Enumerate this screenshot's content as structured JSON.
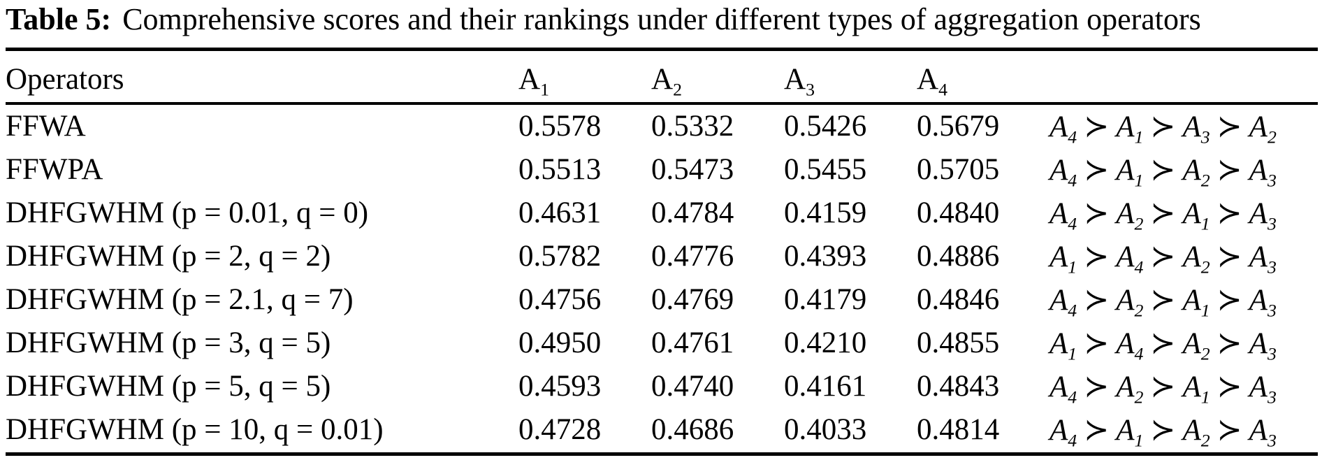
{
  "title": {
    "label": "Table 5:",
    "text": "Comprehensive scores and their rankings under different types of aggregation operators"
  },
  "table": {
    "operator_header": "Operators",
    "alternative_symbol": "A",
    "succeeds_symbol": "≻",
    "alternative_headers": [
      {
        "base": "A",
        "sub": "1"
      },
      {
        "base": "A",
        "sub": "2"
      },
      {
        "base": "A",
        "sub": "3"
      },
      {
        "base": "A",
        "sub": "4"
      }
    ],
    "rows": [
      {
        "operator": "FFWA",
        "scores": [
          "0.5578",
          "0.5332",
          "0.5426",
          "0.5679"
        ],
        "ranking_order": [
          "4",
          "1",
          "3",
          "2"
        ]
      },
      {
        "operator": "FFWPA",
        "scores": [
          "0.5513",
          "0.5473",
          "0.5455",
          "0.5705"
        ],
        "ranking_order": [
          "4",
          "1",
          "2",
          "3"
        ]
      },
      {
        "operator": "DHFGWHM (p = 0.01, q = 0)",
        "scores": [
          "0.4631",
          "0.4784",
          "0.4159",
          "0.4840"
        ],
        "ranking_order": [
          "4",
          "2",
          "1",
          "3"
        ]
      },
      {
        "operator": "DHFGWHM (p = 2, q = 2)",
        "scores": [
          "0.5782",
          "0.4776",
          "0.4393",
          "0.4886"
        ],
        "ranking_order": [
          "1",
          "4",
          "2",
          "3"
        ]
      },
      {
        "operator": "DHFGWHM (p = 2.1, q = 7)",
        "scores": [
          "0.4756",
          "0.4769",
          "0.4179",
          "0.4846"
        ],
        "ranking_order": [
          "4",
          "2",
          "1",
          "3"
        ]
      },
      {
        "operator": "DHFGWHM (p = 3, q = 5)",
        "scores": [
          "0.4950",
          "0.4761",
          "0.4210",
          "0.4855"
        ],
        "ranking_order": [
          "1",
          "4",
          "2",
          "3"
        ]
      },
      {
        "operator": "DHFGWHM (p = 5, q = 5)",
        "scores": [
          "0.4593",
          "0.4740",
          "0.4161",
          "0.4843"
        ],
        "ranking_order": [
          "4",
          "2",
          "1",
          "3"
        ]
      },
      {
        "operator": "DHFGWHM (p = 10, q = 0.01)",
        "scores": [
          "0.4728",
          "0.4686",
          "0.4033",
          "0.4814"
        ],
        "ranking_order": [
          "4",
          "1",
          "2",
          "3"
        ]
      }
    ]
  },
  "colors": {
    "background": "#ffffff",
    "text": "#000000",
    "rule": "#000000"
  }
}
